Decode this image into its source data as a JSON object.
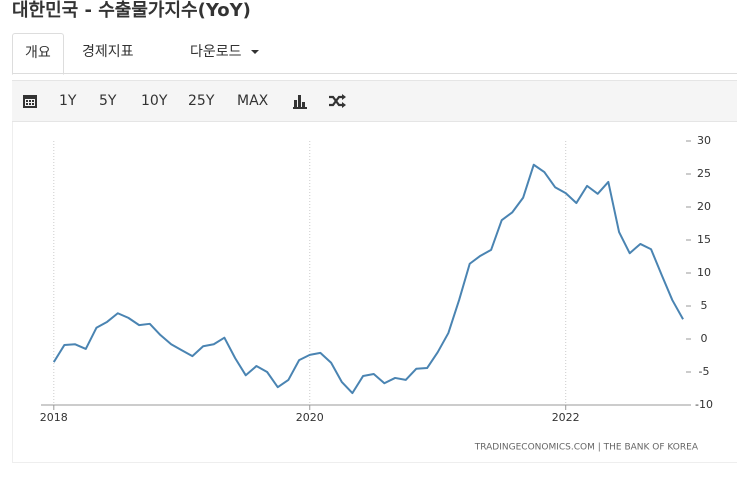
{
  "header": {
    "title": "대한민국 - 수출물가지수(YoY)"
  },
  "tabs": [
    "개요",
    "경제지표",
    "다운로드"
  ],
  "toolbar": [
    "1Y",
    "5Y",
    "10Y",
    "25Y",
    "MAX"
  ],
  "chart_data": {
    "type": "line",
    "source": "TRADINGECONOMICS.COM  |  THE BANK OF KOREA",
    "x": [
      2018,
      2018.083,
      2018.167,
      2018.25,
      2018.333,
      2018.417,
      2018.5,
      2018.583,
      2018.667,
      2018.75,
      2018.833,
      2018.917,
      2019,
      2019.083,
      2019.167,
      2019.25,
      2019.333,
      2019.417,
      2019.5,
      2019.583,
      2019.667,
      2019.75,
      2019.833,
      2019.917,
      2020,
      2020.083,
      2020.167,
      2020.25,
      2020.333,
      2020.417,
      2020.5,
      2020.583,
      2020.667,
      2020.75,
      2020.833,
      2020.917,
      2021,
      2021.083,
      2021.167,
      2021.25,
      2021.333,
      2021.417,
      2021.5,
      2021.583,
      2021.667,
      2021.75,
      2021.833,
      2021.917,
      2022,
      2022.083,
      2022.167,
      2022.25,
      2022.333,
      2022.417,
      2022.5,
      2022.583,
      2022.667,
      2022.75,
      2022.833,
      2022.917
    ],
    "series": [
      {
        "color": "#4a84b2",
        "values": [
          -3.5,
          -0.9,
          -0.8,
          -1.5,
          1.7,
          2.6,
          3.9,
          3.2,
          2.1,
          2.3,
          0.6,
          -0.8,
          -1.7,
          -2.6,
          -1.1,
          -0.8,
          0.2,
          -2.9,
          -5.5,
          -4.1,
          -5.0,
          -7.3,
          -6.2,
          -3.2,
          -2.4,
          -2.1,
          -3.6,
          -6.5,
          -8.2,
          -5.6,
          -5.3,
          -6.7,
          -5.9,
          -6.2,
          -4.5,
          -4.4,
          -2.0,
          0.9,
          5.9,
          11.4,
          12.6,
          13.5,
          18.0,
          19.2,
          21.4,
          26.4,
          25.3,
          23.0,
          22.1,
          20.6,
          23.2,
          22.0,
          23.8,
          16.2,
          13.0,
          14.4,
          13.6,
          9.7,
          5.9,
          3.0
        ]
      }
    ],
    "xlim": [
      2017.9,
      2022.94
    ],
    "xticks": [
      2018,
      2020,
      2022
    ],
    "ylim": [
      -10,
      30
    ],
    "yticks": [
      -10,
      -5,
      0,
      5,
      10,
      15,
      20,
      25,
      30
    ],
    "grid": true
  }
}
